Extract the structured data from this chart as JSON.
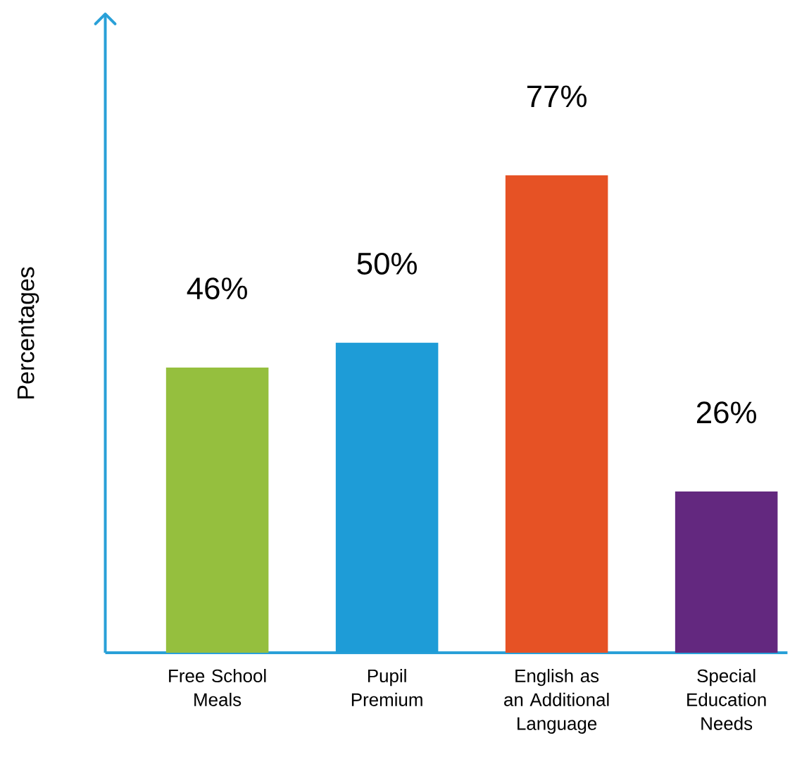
{
  "chart_data": {
    "type": "bar",
    "ylabel": "Percentages",
    "categories": [
      "Free School Meals",
      "Pupil Premium",
      "English as an Additional Language",
      "Special Education Needs"
    ],
    "values": [
      46,
      50,
      77,
      26
    ],
    "colors": [
      "#95bf3e",
      "#1e9cd7",
      "#e65225",
      "#63287f"
    ],
    "value_labels": [
      "46%",
      "50%",
      "77%",
      "26%"
    ],
    "ylim": [
      0,
      103
    ]
  }
}
